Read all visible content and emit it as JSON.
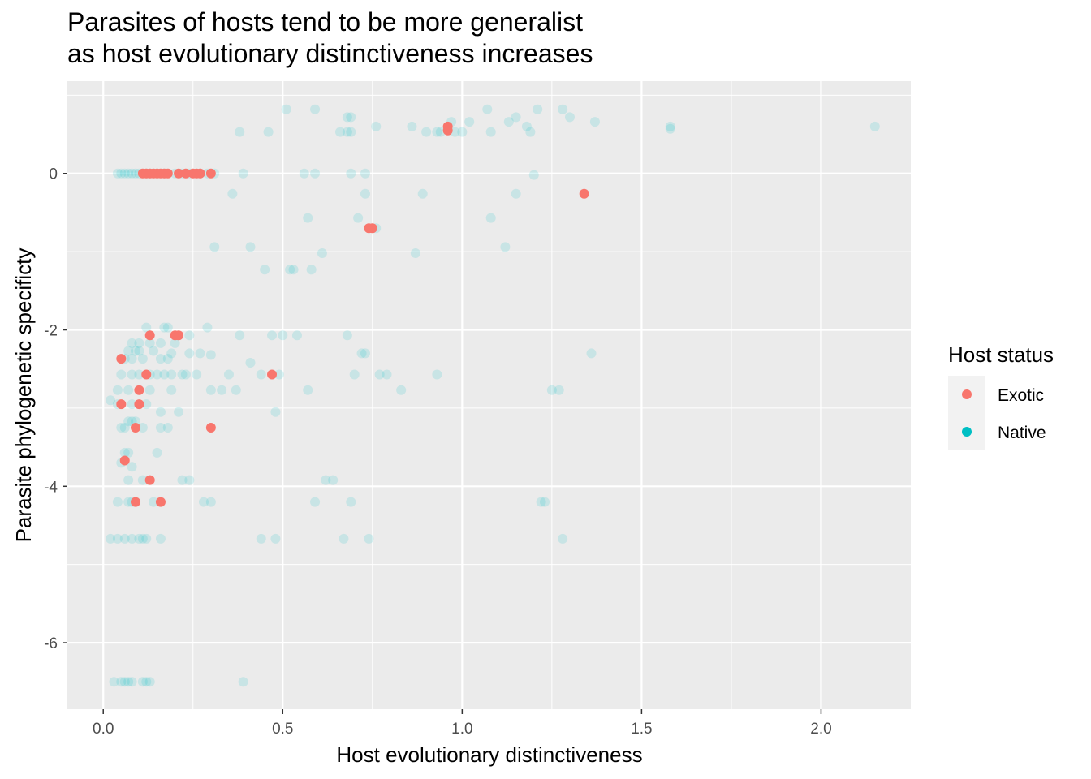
{
  "chart_data": {
    "type": "scatter",
    "title": "Parasites of hosts tend to be more generalist",
    "subtitle": "as host evolutionary distinctiveness increases",
    "xlabel": "Host evolutionary distinctiveness",
    "ylabel": "Parasite phylogenetic specificty",
    "xlim": [
      -0.1,
      2.25
    ],
    "ylim": [
      -6.85,
      1.18
    ],
    "x_ticks": [
      0.0,
      0.5,
      1.0,
      1.5,
      2.0
    ],
    "x_tick_labels": [
      "0.0",
      "0.5",
      "1.0",
      "1.5",
      "2.0"
    ],
    "y_ticks": [
      0,
      -2,
      -4,
      -6
    ],
    "y_tick_labels": [
      "0",
      "-2",
      "-4",
      "-6"
    ],
    "grid": true,
    "legend": {
      "title": "Host status",
      "position": "right",
      "entries": [
        "Exotic",
        "Native"
      ]
    },
    "series": [
      {
        "name": "Exotic",
        "color": "#F8766D",
        "opacity": 1.0,
        "points": [
          [
            0.11,
            0
          ],
          [
            0.12,
            0
          ],
          [
            0.13,
            0
          ],
          [
            0.14,
            0
          ],
          [
            0.15,
            0
          ],
          [
            0.16,
            0
          ],
          [
            0.17,
            0
          ],
          [
            0.18,
            0
          ],
          [
            0.21,
            0
          ],
          [
            0.23,
            0
          ],
          [
            0.25,
            0
          ],
          [
            0.26,
            0
          ],
          [
            0.27,
            0
          ],
          [
            0.3,
            0
          ],
          [
            0.96,
            0.6
          ],
          [
            0.96,
            0.55
          ],
          [
            1.34,
            -0.26
          ],
          [
            0.74,
            -0.7
          ],
          [
            0.75,
            -0.7
          ],
          [
            0.13,
            -2.07
          ],
          [
            0.2,
            -2.07
          ],
          [
            0.21,
            -2.07
          ],
          [
            0.05,
            -2.37
          ],
          [
            0.12,
            -2.57
          ],
          [
            0.47,
            -2.57
          ],
          [
            0.1,
            -2.77
          ],
          [
            0.05,
            -2.95
          ],
          [
            0.1,
            -2.95
          ],
          [
            0.09,
            -3.25
          ],
          [
            0.3,
            -3.25
          ],
          [
            0.06,
            -3.67
          ],
          [
            0.13,
            -3.92
          ],
          [
            0.09,
            -4.2
          ],
          [
            0.16,
            -4.2
          ]
        ]
      },
      {
        "name": "Native",
        "color": "#00BFC4",
        "opacity": 0.15,
        "points": [
          [
            0.04,
            0
          ],
          [
            0.05,
            0
          ],
          [
            0.06,
            0
          ],
          [
            0.07,
            0
          ],
          [
            0.08,
            0
          ],
          [
            0.09,
            0
          ],
          [
            0.1,
            0
          ],
          [
            0.12,
            0
          ],
          [
            0.13,
            0
          ],
          [
            0.15,
            0
          ],
          [
            0.17,
            0
          ],
          [
            0.2,
            0
          ],
          [
            0.22,
            0
          ],
          [
            0.24,
            0
          ],
          [
            0.27,
            0
          ],
          [
            0.29,
            0
          ],
          [
            0.31,
            0
          ],
          [
            0.39,
            0
          ],
          [
            0.56,
            0
          ],
          [
            0.59,
            0
          ],
          [
            0.69,
            0
          ],
          [
            0.73,
            0
          ],
          [
            0.36,
            -0.26
          ],
          [
            0.73,
            -0.26
          ],
          [
            0.89,
            -0.26
          ],
          [
            1.15,
            -0.26
          ],
          [
            1.2,
            -0.02
          ],
          [
            0.57,
            -0.57
          ],
          [
            0.71,
            -0.57
          ],
          [
            1.08,
            -0.57
          ],
          [
            0.76,
            -0.7
          ],
          [
            0.31,
            -0.94
          ],
          [
            0.41,
            -0.94
          ],
          [
            1.12,
            -0.94
          ],
          [
            0.61,
            -1.02
          ],
          [
            0.87,
            -1.02
          ],
          [
            0.45,
            -1.23
          ],
          [
            0.52,
            -1.23
          ],
          [
            0.53,
            -1.23
          ],
          [
            0.58,
            -1.23
          ],
          [
            0.51,
            0.82
          ],
          [
            0.59,
            0.82
          ],
          [
            1.07,
            0.82
          ],
          [
            1.21,
            0.82
          ],
          [
            1.28,
            0.82
          ],
          [
            0.68,
            0.72
          ],
          [
            0.69,
            0.72
          ],
          [
            1.3,
            0.72
          ],
          [
            1.15,
            0.72
          ],
          [
            1.13,
            0.66
          ],
          [
            0.97,
            0.66
          ],
          [
            1.02,
            0.66
          ],
          [
            1.37,
            0.66
          ],
          [
            1.58,
            0.6
          ],
          [
            2.15,
            0.6
          ],
          [
            0.76,
            0.6
          ],
          [
            0.86,
            0.6
          ],
          [
            1.18,
            0.6
          ],
          [
            0.38,
            0.53
          ],
          [
            0.46,
            0.53
          ],
          [
            0.66,
            0.53
          ],
          [
            0.68,
            0.53
          ],
          [
            0.69,
            0.53
          ],
          [
            0.9,
            0.53
          ],
          [
            0.93,
            0.53
          ],
          [
            0.94,
            0.53
          ],
          [
            0.98,
            0.53
          ],
          [
            1.0,
            0.53
          ],
          [
            1.08,
            0.53
          ],
          [
            1.19,
            0.53
          ],
          [
            1.58,
            0.57
          ],
          [
            0.12,
            -1.97
          ],
          [
            0.17,
            -1.97
          ],
          [
            0.18,
            -1.97
          ],
          [
            0.24,
            -2.07
          ],
          [
            0.29,
            -1.97
          ],
          [
            0.38,
            -2.07
          ],
          [
            0.47,
            -2.07
          ],
          [
            0.5,
            -2.07
          ],
          [
            0.54,
            -2.07
          ],
          [
            0.68,
            -2.07
          ],
          [
            0.08,
            -2.17
          ],
          [
            0.1,
            -2.17
          ],
          [
            0.13,
            -2.17
          ],
          [
            0.16,
            -2.17
          ],
          [
            0.2,
            -2.17
          ],
          [
            0.07,
            -2.27
          ],
          [
            0.09,
            -2.27
          ],
          [
            0.1,
            -2.27
          ],
          [
            0.14,
            -2.27
          ],
          [
            0.19,
            -2.3
          ],
          [
            0.06,
            -2.37
          ],
          [
            0.08,
            -2.37
          ],
          [
            0.11,
            -2.37
          ],
          [
            0.16,
            -2.37
          ],
          [
            0.18,
            -2.37
          ],
          [
            0.24,
            -2.3
          ],
          [
            0.27,
            -2.3
          ],
          [
            0.3,
            -2.32
          ],
          [
            0.72,
            -2.3
          ],
          [
            0.73,
            -2.3
          ],
          [
            1.36,
            -2.3
          ],
          [
            0.41,
            -2.42
          ],
          [
            0.05,
            -2.57
          ],
          [
            0.08,
            -2.57
          ],
          [
            0.1,
            -2.57
          ],
          [
            0.13,
            -2.57
          ],
          [
            0.15,
            -2.57
          ],
          [
            0.17,
            -2.57
          ],
          [
            0.19,
            -2.57
          ],
          [
            0.22,
            -2.57
          ],
          [
            0.23,
            -2.57
          ],
          [
            0.26,
            -2.57
          ],
          [
            0.35,
            -2.57
          ],
          [
            0.44,
            -2.57
          ],
          [
            0.49,
            -2.57
          ],
          [
            0.7,
            -2.57
          ],
          [
            0.77,
            -2.57
          ],
          [
            0.79,
            -2.57
          ],
          [
            0.93,
            -2.57
          ],
          [
            0.04,
            -2.77
          ],
          [
            0.07,
            -2.77
          ],
          [
            0.13,
            -2.77
          ],
          [
            0.19,
            -2.77
          ],
          [
            0.3,
            -2.77
          ],
          [
            0.33,
            -2.77
          ],
          [
            0.37,
            -2.77
          ],
          [
            0.57,
            -2.77
          ],
          [
            0.83,
            -2.77
          ],
          [
            1.25,
            -2.77
          ],
          [
            1.27,
            -2.77
          ],
          [
            0.02,
            -2.9
          ],
          [
            0.04,
            -2.95
          ],
          [
            0.08,
            -2.95
          ],
          [
            0.12,
            -2.95
          ],
          [
            0.21,
            -3.05
          ],
          [
            0.16,
            -3.05
          ],
          [
            0.07,
            -3.17
          ],
          [
            0.08,
            -3.17
          ],
          [
            0.09,
            -3.17
          ],
          [
            0.05,
            -3.25
          ],
          [
            0.06,
            -3.25
          ],
          [
            0.11,
            -3.25
          ],
          [
            0.16,
            -3.25
          ],
          [
            0.18,
            -3.25
          ],
          [
            0.48,
            -3.05
          ],
          [
            0.06,
            -3.57
          ],
          [
            0.07,
            -3.57
          ],
          [
            0.15,
            -3.57
          ],
          [
            0.05,
            -3.7
          ],
          [
            0.08,
            -3.75
          ],
          [
            0.07,
            -3.92
          ],
          [
            0.11,
            -3.92
          ],
          [
            0.22,
            -3.92
          ],
          [
            0.24,
            -3.92
          ],
          [
            0.62,
            -3.92
          ],
          [
            0.64,
            -3.92
          ],
          [
            0.04,
            -4.2
          ],
          [
            0.07,
            -4.2
          ],
          [
            0.08,
            -4.2
          ],
          [
            0.14,
            -4.2
          ],
          [
            0.28,
            -4.2
          ],
          [
            0.3,
            -4.2
          ],
          [
            0.59,
            -4.2
          ],
          [
            0.69,
            -4.2
          ],
          [
            1.23,
            -4.2
          ],
          [
            1.22,
            -4.2
          ],
          [
            0.02,
            -4.67
          ],
          [
            0.04,
            -4.67
          ],
          [
            0.06,
            -4.67
          ],
          [
            0.08,
            -4.67
          ],
          [
            0.1,
            -4.67
          ],
          [
            0.11,
            -4.67
          ],
          [
            0.12,
            -4.67
          ],
          [
            0.16,
            -4.67
          ],
          [
            0.44,
            -4.67
          ],
          [
            0.48,
            -4.67
          ],
          [
            0.67,
            -4.67
          ],
          [
            0.74,
            -4.67
          ],
          [
            1.28,
            -4.67
          ],
          [
            0.03,
            -6.5
          ],
          [
            0.05,
            -6.5
          ],
          [
            0.06,
            -6.5
          ],
          [
            0.07,
            -6.5
          ],
          [
            0.08,
            -6.5
          ],
          [
            0.11,
            -6.5
          ],
          [
            0.12,
            -6.5
          ],
          [
            0.13,
            -6.5
          ],
          [
            0.39,
            -6.5
          ]
        ]
      }
    ]
  }
}
